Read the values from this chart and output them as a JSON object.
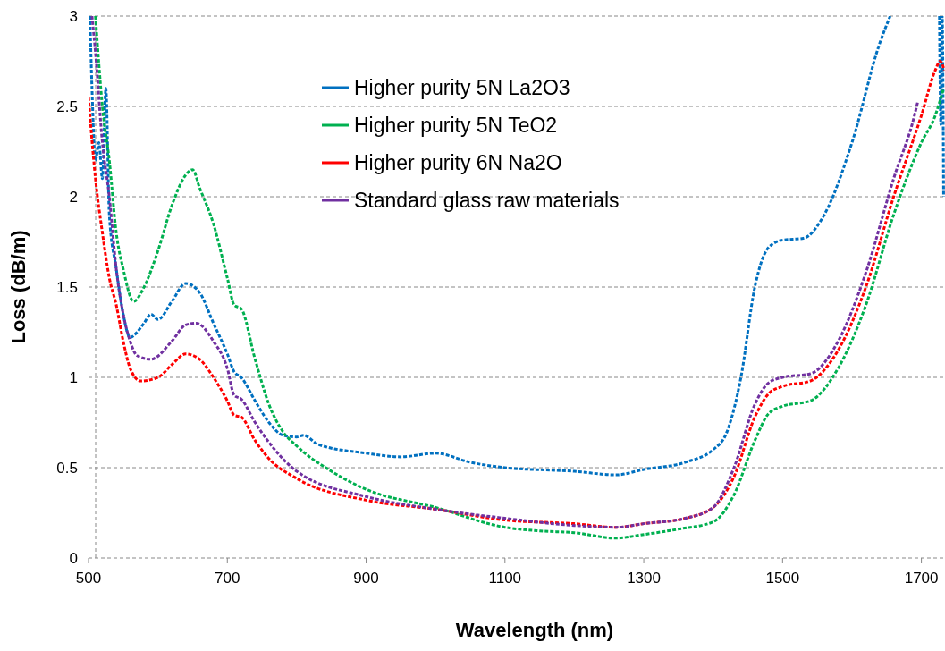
{
  "chart_data": {
    "type": "line",
    "xlabel": "Wavelength (nm)",
    "ylabel": "Loss (dB/m)",
    "xlim": [
      500,
      1734
    ],
    "ylim": [
      0,
      3
    ],
    "xticks": [
      500,
      700,
      900,
      1100,
      1300,
      1500,
      1700
    ],
    "yticks": [
      0,
      0.5,
      1,
      1.5,
      2,
      2.5,
      3
    ],
    "grid": "y",
    "legend": "top",
    "line_style": "dashed",
    "series": [
      {
        "name": "Higher purity 5N La2O3",
        "color": "#0070c0",
        "x": [
          502,
          505,
          510,
          515,
          520,
          525,
          530,
          540,
          550,
          560,
          570,
          580,
          590,
          600,
          620,
          640,
          660,
          680,
          700,
          710,
          720,
          740,
          760,
          780,
          800,
          810,
          830,
          900,
          950,
          1000,
          1050,
          1100,
          1200,
          1260,
          1300,
          1360,
          1400,
          1420,
          1440,
          1460,
          1480,
          1500,
          1530,
          1560,
          1600,
          1640,
          1655,
          1700,
          1726,
          1728,
          1730,
          1732
        ],
        "values": [
          3,
          2.6,
          2.2,
          2.3,
          2.1,
          2.6,
          1.9,
          1.6,
          1.35,
          1.22,
          1.25,
          1.3,
          1.35,
          1.32,
          1.42,
          1.52,
          1.47,
          1.3,
          1.13,
          1.03,
          1.0,
          0.87,
          0.75,
          0.68,
          0.67,
          0.68,
          0.63,
          0.58,
          0.56,
          0.58,
          0.53,
          0.5,
          0.48,
          0.46,
          0.49,
          0.53,
          0.6,
          0.7,
          1.0,
          1.5,
          1.72,
          1.76,
          1.77,
          1.9,
          2.3,
          2.85,
          3,
          null,
          3,
          2.4,
          3,
          2.0
        ]
      },
      {
        "name": "Higher purity 5N TeO2",
        "color": "#00b050",
        "x": [
          510,
          520,
          530,
          540,
          550,
          565,
          580,
          600,
          620,
          640,
          650,
          660,
          680,
          700,
          710,
          720,
          740,
          760,
          780,
          800,
          850,
          900,
          1000,
          1100,
          1150,
          1200,
          1260,
          1300,
          1350,
          1400,
          1430,
          1460,
          1480,
          1500,
          1540,
          1580,
          1620,
          1660,
          1700,
          1720,
          1732
        ],
        "values": [
          3,
          2.5,
          2.2,
          1.8,
          1.6,
          1.42,
          1.5,
          1.7,
          1.95,
          2.12,
          2.15,
          2.05,
          1.85,
          1.55,
          1.4,
          1.38,
          1.1,
          0.85,
          0.7,
          0.62,
          0.48,
          0.38,
          0.28,
          0.17,
          0.15,
          0.14,
          0.11,
          0.13,
          0.16,
          0.2,
          0.35,
          0.65,
          0.8,
          0.84,
          0.87,
          1.05,
          1.4,
          1.9,
          2.3,
          2.45,
          2.6
        ]
      },
      {
        "name": "Higher purity 6N Na2O",
        "color": "#ff0000",
        "x": [
          500,
          510,
          520,
          530,
          540,
          550,
          560,
          575,
          600,
          620,
          640,
          660,
          680,
          700,
          710,
          720,
          740,
          760,
          800,
          900,
          1000,
          1100,
          1200,
          1260,
          1300,
          1360,
          1400,
          1430,
          1460,
          1480,
          1500,
          1540,
          1580,
          1620,
          1660,
          1700,
          1720,
          1727,
          1733
        ],
        "values": [
          2.55,
          2.1,
          1.8,
          1.55,
          1.4,
          1.2,
          1.05,
          0.98,
          1.0,
          1.07,
          1.13,
          1.1,
          1.0,
          0.87,
          0.79,
          0.78,
          0.65,
          0.55,
          0.44,
          0.32,
          0.27,
          0.21,
          0.19,
          0.17,
          0.19,
          0.22,
          0.28,
          0.45,
          0.78,
          0.91,
          0.95,
          0.98,
          1.15,
          1.5,
          2.0,
          2.45,
          2.7,
          2.75,
          2.7
        ]
      },
      {
        "name": "Standard glass raw materials",
        "color": "#7030a0",
        "x": [
          505,
          510,
          520,
          530,
          540,
          550,
          560,
          570,
          590,
          620,
          640,
          655,
          680,
          700,
          710,
          720,
          740,
          760,
          800,
          900,
          1000,
          1100,
          1200,
          1260,
          1300,
          1360,
          1400,
          1430,
          1460,
          1480,
          1500,
          1540,
          1580,
          1620,
          1660,
          1690,
          1695
        ],
        "values": [
          3,
          2.8,
          2.3,
          2.0,
          1.6,
          1.35,
          1.2,
          1.12,
          1.1,
          1.2,
          1.29,
          1.3,
          1.2,
          1.05,
          0.9,
          0.88,
          0.75,
          0.64,
          0.48,
          0.34,
          0.27,
          0.22,
          0.18,
          0.17,
          0.19,
          0.22,
          0.28,
          0.5,
          0.85,
          0.97,
          1.0,
          1.02,
          1.2,
          1.58,
          2.1,
          2.45,
          2.53
        ]
      }
    ]
  }
}
